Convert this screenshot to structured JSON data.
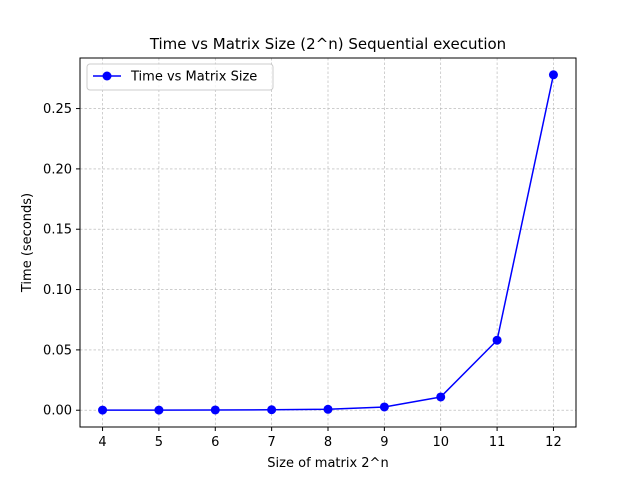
{
  "chart_data": {
    "type": "line",
    "title": "Time vs Matrix Size (2^n) Sequential execution",
    "xlabel": "Size of matrix 2^n",
    "ylabel": "Time (seconds)",
    "x": [
      4,
      5,
      6,
      7,
      8,
      9,
      10,
      11,
      12
    ],
    "series": [
      {
        "name": "Time vs Matrix Size",
        "color": "#0000ff",
        "marker": "circle",
        "values": [
          0.0001,
          0.0001,
          0.0002,
          0.0004,
          0.0008,
          0.0027,
          0.011,
          0.058,
          0.278
        ]
      }
    ],
    "xlim": [
      3.6,
      12.4
    ],
    "ylim": [
      -0.0139,
      0.2919
    ],
    "xticks": [
      4,
      5,
      6,
      7,
      8,
      9,
      10,
      11,
      12
    ],
    "xtick_labels": [
      "4",
      "5",
      "6",
      "7",
      "8",
      "9",
      "10",
      "11",
      "12"
    ],
    "yticks": [
      0.0,
      0.05,
      0.1,
      0.15,
      0.2,
      0.25
    ],
    "ytick_labels": [
      "0.00",
      "0.05",
      "0.10",
      "0.15",
      "0.20",
      "0.25"
    ],
    "grid": true,
    "legend": "top-left"
  }
}
